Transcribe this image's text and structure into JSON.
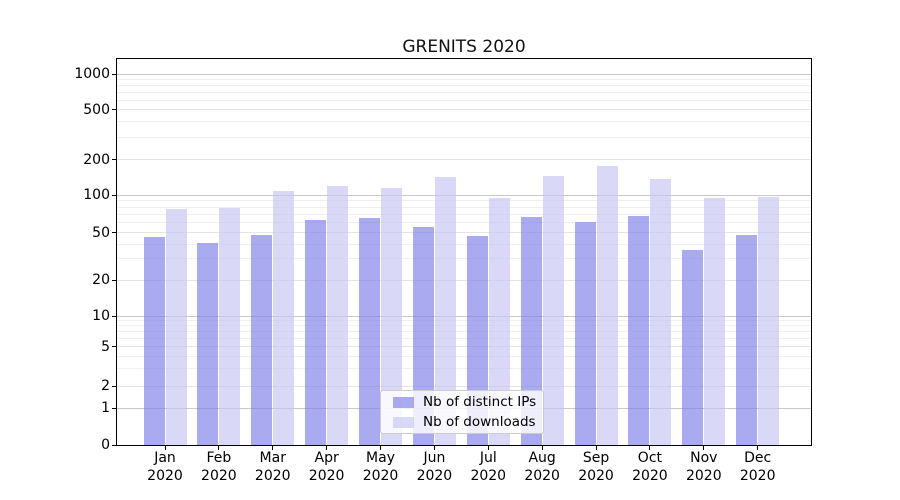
{
  "chart_data": {
    "type": "bar",
    "title": "GRENITS 2020",
    "categories": [
      "Jan 2020",
      "Feb 2020",
      "Mar 2020",
      "Apr 2020",
      "May 2020",
      "Jun 2020",
      "Jul 2020",
      "Aug 2020",
      "Sep 2020",
      "Oct 2020",
      "Nov 2020",
      "Dec 2020"
    ],
    "x_tick_months": [
      "Jan",
      "Feb",
      "Mar",
      "Apr",
      "May",
      "Jun",
      "Jul",
      "Aug",
      "Sep",
      "Oct",
      "Nov",
      "Dec"
    ],
    "x_tick_year": "2020",
    "series": [
      {
        "name": "Nb of distinct IPs",
        "key": "distinct-ips",
        "color": "rgba(124,124,232,0.65)",
        "values": [
          46,
          41,
          48,
          63,
          66,
          55,
          47,
          67,
          61,
          68,
          36,
          48
        ]
      },
      {
        "name": "Nb of downloads",
        "key": "downloads",
        "color": "rgba(196,196,242,0.65)",
        "values": [
          77,
          79,
          109,
          120,
          115,
          142,
          95,
          147,
          178,
          137,
          96,
          97
        ]
      }
    ],
    "y_ticks": [
      0,
      1,
      2,
      5,
      10,
      20,
      50,
      100,
      200,
      500,
      1000
    ],
    "y_scale": "log-like with zero baseline",
    "ylim": [
      0,
      1300
    ],
    "grid": true,
    "grid_colors": {
      "decade": "#c9c9c9",
      "labeled": "#e4e4e4",
      "minor": "#efefef"
    },
    "legend": {
      "position": "inside-bottom-center",
      "labels": [
        "Nb of distinct IPs",
        "Nb of downloads"
      ]
    }
  }
}
